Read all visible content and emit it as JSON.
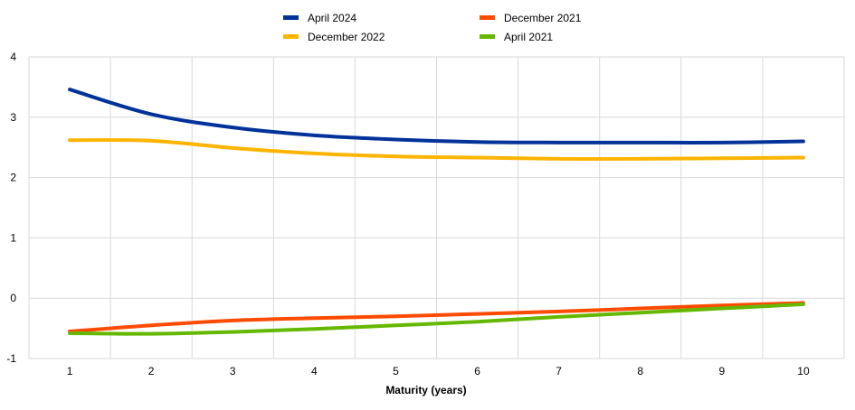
{
  "chart_data": {
    "type": "line",
    "title": "",
    "xlabel": "Maturity (years)",
    "ylabel": "",
    "x": [
      1,
      2,
      3,
      4,
      5,
      6,
      7,
      8,
      9,
      10
    ],
    "xlim": [
      0.5,
      10.5
    ],
    "ylim": [
      -1,
      4
    ],
    "y_ticks": [
      -1,
      0,
      1,
      2,
      3,
      4
    ],
    "grid": true,
    "legend_position": "top-center",
    "series": [
      {
        "name": "April 2024",
        "color": "#003299",
        "values": [
          3.46,
          3.05,
          2.83,
          2.7,
          2.63,
          2.59,
          2.58,
          2.58,
          2.58,
          2.6
        ]
      },
      {
        "name": "December 2022",
        "color": "#FFB400",
        "values": [
          2.62,
          2.61,
          2.49,
          2.4,
          2.35,
          2.33,
          2.31,
          2.31,
          2.32,
          2.33
        ]
      },
      {
        "name": "December 2021",
        "color": "#FF4B00",
        "values": [
          -0.55,
          -0.45,
          -0.37,
          -0.33,
          -0.3,
          -0.26,
          -0.22,
          -0.17,
          -0.12,
          -0.08
        ]
      },
      {
        "name": "April 2021",
        "color": "#65B800",
        "values": [
          -0.58,
          -0.59,
          -0.56,
          -0.51,
          -0.45,
          -0.39,
          -0.31,
          -0.24,
          -0.17,
          -0.1
        ]
      }
    ]
  }
}
